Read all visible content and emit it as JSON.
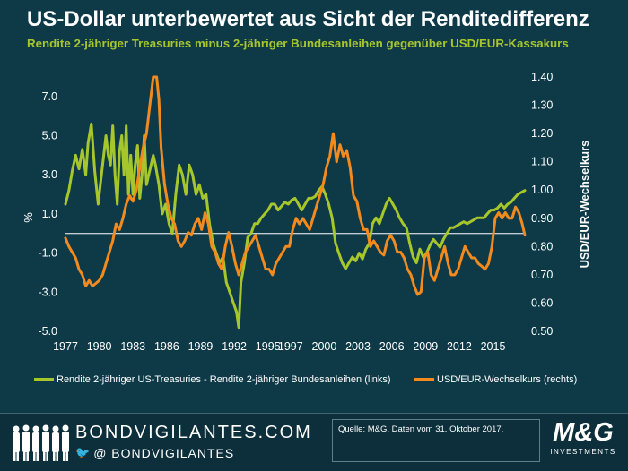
{
  "title": "US-Dollar unterbewertet aus Sicht der Renditedifferenz",
  "subtitle": "Rendite 2-jähriger Treasuries minus 2-jähriger Bundesanleihen gegenüber USD/EUR-Kassakurs",
  "legend": {
    "spread_label": "Rendite 2-jähriger US-Treasuries - Rendite 2-jähriger Bundesanleihen (links)",
    "fx_label": "USD/EUR-Wechselkurs (rechts)"
  },
  "footer": {
    "brand": "BONDVIGILANTES.COM",
    "twitter_handle": "@ BONDVIGILANTES",
    "source": "Quelle: M&G, Daten vom 31. Oktober 2017.",
    "logo_main": "M&G",
    "logo_sub": "INVESTMENTS"
  },
  "colors": {
    "background": "#0e3a48",
    "spread": "#a7c62b",
    "fx": "#f28a1e",
    "axis_text": "#ffffff"
  },
  "chart_data": {
    "type": "line",
    "title": "US-Dollar unterbewertet aus Sicht der Renditedifferenz",
    "subtitle": "Rendite 2-jähriger Treasuries minus 2-jähriger Bundesanleihen gegenüber USD/EUR-Kassakurs",
    "xlabel": "",
    "ylabel_left": "%",
    "ylabel_right": "USD/EUR-Wechselkurs",
    "x_ticks": [
      "1977",
      "1980",
      "1983",
      "1986",
      "1989",
      "1992",
      "1995",
      "1997",
      "2000",
      "2003",
      "2006",
      "2009",
      "2012",
      "2015"
    ],
    "y_left_ticks": [
      "-5.0",
      "-3.0",
      "-1.0",
      "1.0",
      "3.0",
      "5.0",
      "7.0"
    ],
    "y_right_ticks": [
      "0.50",
      "0.60",
      "0.70",
      "0.80",
      "0.90",
      "1.00",
      "1.10",
      "1.20",
      "1.30",
      "1.40"
    ],
    "ylim_left": [
      -5,
      8
    ],
    "ylim_right": [
      0.5,
      1.4
    ],
    "xlim": [
      1977,
      2017.83
    ],
    "zero_line": true,
    "grid": false,
    "legend_position": "bottom",
    "series": [
      {
        "name": "Rendite 2-jähriger US-Treasuries - Rendite 2-jähriger Bundesanleihen (links)",
        "axis": "left",
        "x": [
          1977.0,
          1977.3,
          1977.6,
          1977.9,
          1978.2,
          1978.5,
          1978.8,
          1979.0,
          1979.3,
          1979.6,
          1979.9,
          1980.2,
          1980.4,
          1980.6,
          1980.8,
          1981.0,
          1981.2,
          1981.4,
          1981.6,
          1981.8,
          1982.0,
          1982.2,
          1982.4,
          1982.6,
          1982.8,
          1983.0,
          1983.2,
          1983.4,
          1983.6,
          1983.8,
          1984.0,
          1984.2,
          1984.4,
          1984.6,
          1984.8,
          1985.0,
          1985.3,
          1985.6,
          1985.9,
          1986.2,
          1986.5,
          1986.8,
          1987.1,
          1987.4,
          1987.7,
          1988.0,
          1988.3,
          1988.6,
          1988.9,
          1989.2,
          1989.5,
          1989.8,
          1990.1,
          1990.4,
          1990.7,
          1991.0,
          1991.3,
          1991.6,
          1991.9,
          1992.2,
          1992.4,
          1992.6,
          1992.9,
          1993.2,
          1993.5,
          1993.8,
          1994.1,
          1994.4,
          1994.7,
          1995.0,
          1995.3,
          1995.6,
          1995.9,
          1996.2,
          1996.5,
          1996.8,
          1997.1,
          1997.4,
          1997.7,
          1998.0,
          1998.3,
          1998.6,
          1998.9,
          1999.2,
          1999.5,
          1999.8,
          2000.1,
          2000.4,
          2000.7,
          2001.0,
          2001.3,
          2001.6,
          2001.9,
          2002.2,
          2002.5,
          2002.8,
          2003.1,
          2003.4,
          2003.7,
          2004.0,
          2004.3,
          2004.6,
          2004.9,
          2005.2,
          2005.5,
          2005.8,
          2006.1,
          2006.4,
          2006.7,
          2007.0,
          2007.3,
          2007.6,
          2007.9,
          2008.2,
          2008.5,
          2008.8,
          2009.1,
          2009.4,
          2009.7,
          2010.0,
          2010.3,
          2010.6,
          2010.9,
          2011.2,
          2011.5,
          2011.8,
          2012.1,
          2012.4,
          2012.7,
          2013.0,
          2013.3,
          2013.6,
          2013.9,
          2014.2,
          2014.5,
          2014.8,
          2015.1,
          2015.4,
          2015.7,
          2016.0,
          2016.3,
          2016.6,
          2016.9,
          2017.2,
          2017.5,
          2017.83
        ],
        "values": [
          1.5,
          2.2,
          3.2,
          4.0,
          3.3,
          4.3,
          3.0,
          4.6,
          5.6,
          3.2,
          1.5,
          3.0,
          4.0,
          5.0,
          4.0,
          3.5,
          5.5,
          3.0,
          1.5,
          4.2,
          5.0,
          3.0,
          5.5,
          2.0,
          4.0,
          2.0,
          3.5,
          4.5,
          1.8,
          3.0,
          5.0,
          2.5,
          3.0,
          3.5,
          4.0,
          3.5,
          2.5,
          1.0,
          1.5,
          0.5,
          0.0,
          2.0,
          3.5,
          3.0,
          2.0,
          3.5,
          3.0,
          2.0,
          2.5,
          1.8,
          2.0,
          0.5,
          -0.5,
          -1.0,
          -1.5,
          -1.2,
          -2.5,
          -3.0,
          -3.5,
          -4.0,
          -4.8,
          -2.5,
          -1.5,
          -0.2,
          0.0,
          0.5,
          0.5,
          0.8,
          1.0,
          1.2,
          1.5,
          1.5,
          1.2,
          1.4,
          1.6,
          1.5,
          1.7,
          1.8,
          1.5,
          1.2,
          1.5,
          1.8,
          1.8,
          1.9,
          2.2,
          2.4,
          2.0,
          1.5,
          0.8,
          -0.5,
          -1.0,
          -1.5,
          -1.8,
          -1.5,
          -1.2,
          -1.4,
          -1.0,
          -1.3,
          -0.8,
          -0.5,
          0.5,
          0.8,
          0.5,
          1.0,
          1.5,
          1.8,
          1.5,
          1.2,
          0.8,
          0.5,
          0.3,
          -0.5,
          -1.2,
          -1.5,
          -0.8,
          -1.2,
          -1.0,
          -0.6,
          -0.3,
          -0.5,
          -0.7,
          -0.3,
          0.0,
          0.3,
          0.3,
          0.4,
          0.5,
          0.6,
          0.5,
          0.6,
          0.7,
          0.8,
          0.8,
          0.8,
          1.0,
          1.2,
          1.2,
          1.3,
          1.5,
          1.3,
          1.5,
          1.6,
          1.8,
          2.0,
          2.1,
          2.2
        ]
      },
      {
        "name": "USD/EUR-Wechselkurs (rechts)",
        "axis": "right",
        "x": [
          1977.0,
          1977.3,
          1977.6,
          1977.9,
          1978.2,
          1978.5,
          1978.8,
          1979.1,
          1979.4,
          1979.7,
          1980.0,
          1980.3,
          1980.6,
          1980.9,
          1981.2,
          1981.5,
          1981.8,
          1982.1,
          1982.4,
          1982.7,
          1983.0,
          1983.3,
          1983.6,
          1983.9,
          1984.2,
          1984.5,
          1984.8,
          1985.1,
          1985.3,
          1985.5,
          1985.8,
          1986.1,
          1986.4,
          1986.7,
          1987.0,
          1987.3,
          1987.6,
          1987.9,
          1988.2,
          1988.5,
          1988.8,
          1989.1,
          1989.4,
          1989.7,
          1990.0,
          1990.3,
          1990.6,
          1990.9,
          1991.2,
          1991.5,
          1991.8,
          1992.1,
          1992.4,
          1992.7,
          1993.0,
          1993.3,
          1993.6,
          1993.9,
          1994.2,
          1994.5,
          1994.8,
          1995.1,
          1995.4,
          1995.7,
          1996.0,
          1996.3,
          1996.6,
          1996.9,
          1997.2,
          1997.5,
          1997.8,
          1998.1,
          1998.4,
          1998.7,
          1999.0,
          1999.3,
          1999.6,
          1999.9,
          2000.2,
          2000.5,
          2000.8,
          2001.1,
          2001.4,
          2001.7,
          2002.0,
          2002.3,
          2002.6,
          2002.9,
          2003.2,
          2003.5,
          2003.8,
          2004.1,
          2004.4,
          2004.7,
          2005.0,
          2005.3,
          2005.6,
          2005.9,
          2006.2,
          2006.5,
          2006.8,
          2007.1,
          2007.4,
          2007.7,
          2008.0,
          2008.3,
          2008.6,
          2008.9,
          2009.2,
          2009.5,
          2009.8,
          2010.1,
          2010.4,
          2010.7,
          2011.0,
          2011.3,
          2011.6,
          2011.9,
          2012.2,
          2012.5,
          2012.8,
          2013.1,
          2013.4,
          2013.7,
          2014.0,
          2014.3,
          2014.6,
          2014.9,
          2015.2,
          2015.5,
          2015.8,
          2016.1,
          2016.4,
          2016.7,
          2017.0,
          2017.3,
          2017.6,
          2017.83
        ],
        "values": [
          0.83,
          0.8,
          0.78,
          0.76,
          0.72,
          0.7,
          0.66,
          0.68,
          0.66,
          0.67,
          0.68,
          0.7,
          0.74,
          0.78,
          0.82,
          0.88,
          0.86,
          0.9,
          0.95,
          0.98,
          0.96,
          1.0,
          1.08,
          1.15,
          1.2,
          1.3,
          1.4,
          1.4,
          1.32,
          1.15,
          1.02,
          0.95,
          0.9,
          0.88,
          0.82,
          0.8,
          0.82,
          0.85,
          0.84,
          0.88,
          0.9,
          0.86,
          0.92,
          0.88,
          0.8,
          0.78,
          0.74,
          0.72,
          0.8,
          0.85,
          0.8,
          0.74,
          0.7,
          0.74,
          0.78,
          0.8,
          0.82,
          0.84,
          0.8,
          0.76,
          0.72,
          0.72,
          0.7,
          0.74,
          0.76,
          0.78,
          0.8,
          0.8,
          0.86,
          0.9,
          0.88,
          0.9,
          0.88,
          0.86,
          0.9,
          0.94,
          0.98,
          1.02,
          1.08,
          1.12,
          1.2,
          1.1,
          1.16,
          1.12,
          1.14,
          1.08,
          0.98,
          0.96,
          0.9,
          0.86,
          0.86,
          0.8,
          0.82,
          0.8,
          0.78,
          0.77,
          0.82,
          0.84,
          0.82,
          0.78,
          0.78,
          0.76,
          0.72,
          0.7,
          0.66,
          0.63,
          0.64,
          0.76,
          0.78,
          0.7,
          0.68,
          0.72,
          0.76,
          0.8,
          0.74,
          0.7,
          0.7,
          0.72,
          0.76,
          0.8,
          0.78,
          0.76,
          0.76,
          0.74,
          0.73,
          0.72,
          0.74,
          0.8,
          0.9,
          0.92,
          0.9,
          0.92,
          0.9,
          0.9,
          0.94,
          0.92,
          0.88,
          0.84
        ]
      }
    ]
  }
}
